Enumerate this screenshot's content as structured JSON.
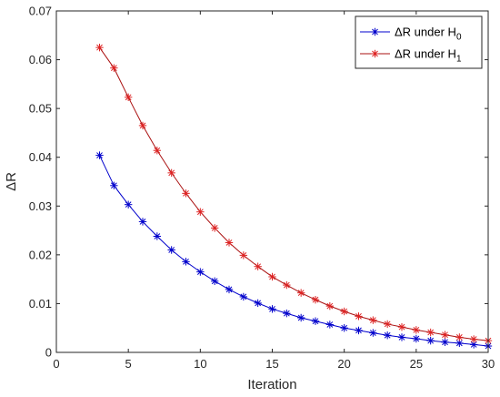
{
  "chart_data": {
    "type": "line",
    "title": "",
    "xlabel": "Iteration",
    "ylabel": "ΔR",
    "xlim": [
      0,
      30
    ],
    "ylim": [
      0,
      0.07
    ],
    "x_ticks": [
      0,
      5,
      10,
      15,
      20,
      25,
      30
    ],
    "x_tick_labels": [
      "0",
      "5",
      "10",
      "15",
      "20",
      "25",
      "30"
    ],
    "y_ticks": [
      0,
      0.01,
      0.02,
      0.03,
      0.04,
      0.05,
      0.06,
      0.07
    ],
    "y_tick_labels": [
      "0",
      "0.01",
      "0.02",
      "0.03",
      "0.04",
      "0.05",
      "0.06",
      "0.07"
    ],
    "grid": false,
    "legend_position": "top-right",
    "x": [
      3,
      4,
      5,
      6,
      7,
      8,
      9,
      10,
      11,
      12,
      13,
      14,
      15,
      16,
      17,
      18,
      19,
      20,
      21,
      22,
      23,
      24,
      25,
      26,
      27,
      28,
      29,
      30
    ],
    "series": [
      {
        "name": "ΔR under H",
        "name_subscript": "0",
        "color": "#0000cc",
        "marker": "asterisk",
        "values": [
          0.0404,
          0.0342,
          0.0303,
          0.0268,
          0.0238,
          0.021,
          0.0186,
          0.0165,
          0.0146,
          0.0129,
          0.0114,
          0.0101,
          0.0089,
          0.008,
          0.0071,
          0.0064,
          0.0057,
          0.005,
          0.0045,
          0.004,
          0.0035,
          0.0031,
          0.0028,
          0.0024,
          0.0021,
          0.0019,
          0.0016,
          0.0013
        ]
      },
      {
        "name": "ΔR under H",
        "name_subscript": "1",
        "color": "#aa1111",
        "marker_color": "#dd2222",
        "marker": "asterisk",
        "values": [
          0.0625,
          0.0583,
          0.0523,
          0.0465,
          0.0414,
          0.0368,
          0.0326,
          0.0288,
          0.0255,
          0.0225,
          0.0199,
          0.0176,
          0.0155,
          0.0138,
          0.0122,
          0.0108,
          0.0095,
          0.0084,
          0.0074,
          0.0066,
          0.0058,
          0.0052,
          0.0046,
          0.0041,
          0.0036,
          0.0031,
          0.0027,
          0.0024
        ]
      }
    ]
  }
}
